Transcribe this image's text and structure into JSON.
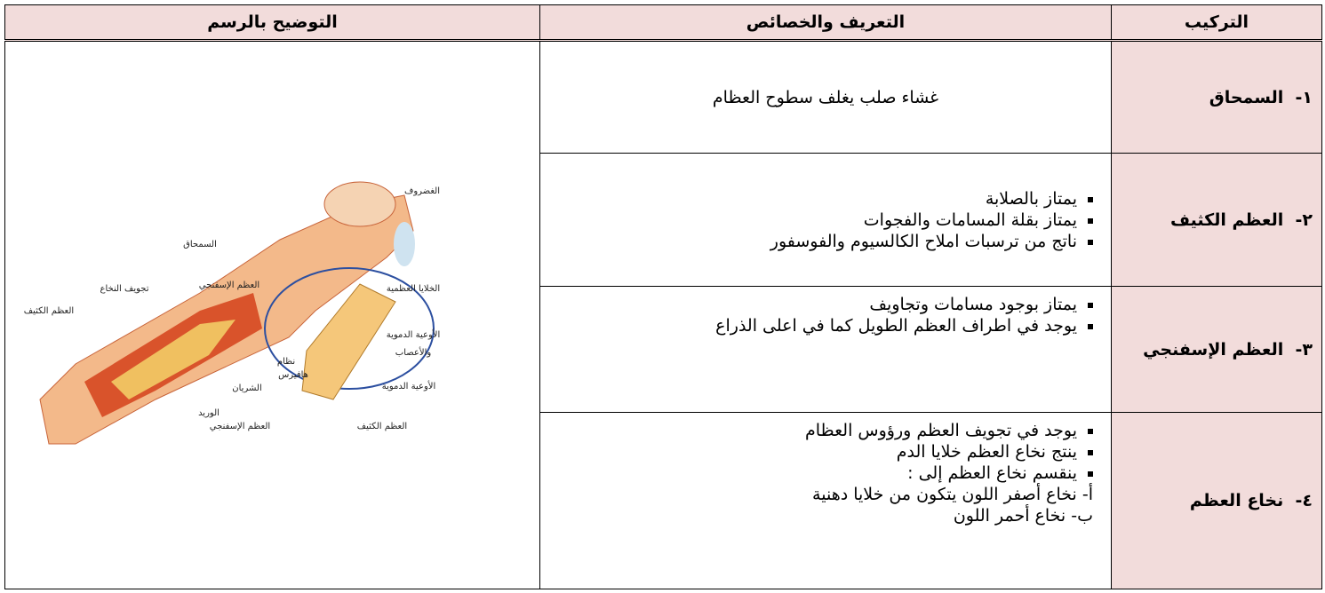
{
  "table": {
    "headers": [
      "التركيب",
      "التعريف  والخصائص",
      "التوضيح بالرسم"
    ],
    "rows": [
      {
        "number": "١-",
        "name": "السمحاق",
        "description": "غشاء صلب يغلف سطوح العظام"
      },
      {
        "number": "٢-",
        "name": "العظم الكثيف",
        "bullets": [
          "يمتاز بالصلابة",
          "يمتاز بقلة المسامات والفجوات",
          "ناتج من ترسبات املاح الكالسيوم والفوسفور"
        ]
      },
      {
        "number": "٣-",
        "name": "العظم الإسفنجي",
        "bullets": [
          "يمتاز بوجود مسامات وتجاويف",
          "يوجد في اطراف العظم الطويل كما في اعلى الذراع"
        ]
      },
      {
        "number": "٤-",
        "name": "نخاع العظم",
        "bullets": [
          "يوجد في تجويف العظم ورؤوس العظام",
          "ينتج نخاع العظم خلايا الدم",
          "ينقسم  نخاع العظم إلى :"
        ],
        "subitems": [
          "أ-  نخاع أصفر اللون يتكون من خلايا دهنية",
          "ب- نخاع أحمر اللون"
        ]
      }
    ]
  },
  "diagram": {
    "labels": [
      "الغضروف",
      "السمحاق",
      "الخلايا العظمية",
      "العظم الإسفنجي",
      "تجويف النخاع",
      "العظم الكثيف",
      "الأوعية الدموية",
      "والأعصاب",
      "نظام",
      "هافيرس",
      "الأوعية الدموية",
      "الشريان",
      "الوريد",
      "العظم الإسفنجي",
      "العظم الكثيف"
    ]
  }
}
